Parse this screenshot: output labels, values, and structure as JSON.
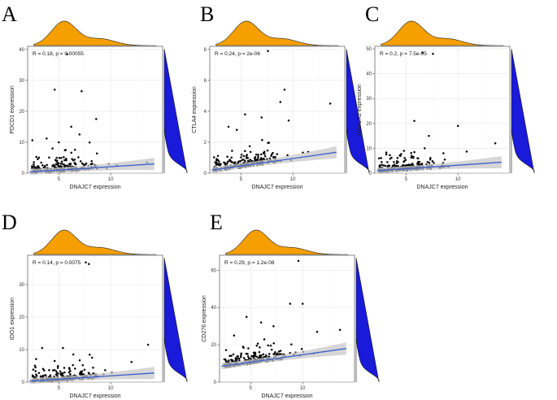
{
  "colors": {
    "density_top": "#f5a000",
    "density_right": "#1a1adb",
    "fit_line": "#3a5fcd",
    "ci_band": "#c8c8c8",
    "point": "#000000",
    "grid": "#e6e6e6"
  },
  "chart_data": [
    {
      "type": "scatter",
      "panel": "A",
      "xlabel": "DNAJC7 expression",
      "ylabel": "PDCD1 expression",
      "stat_text": "R = 0.18, p = 0.00055",
      "xlim": [
        2,
        15
      ],
      "ylim": [
        0,
        41
      ],
      "x_ticks": [
        5,
        10
      ],
      "y_ticks": [
        0,
        10,
        20,
        30,
        40
      ],
      "fit": {
        "x0": 2.2,
        "y0": 0.4,
        "x1": 14.2,
        "y1": 3.0
      },
      "outliers": [
        [
          5.8,
          38.5
        ],
        [
          4.6,
          27
        ],
        [
          7.2,
          26.5
        ],
        [
          8.6,
          17.5
        ],
        [
          6.2,
          15
        ],
        [
          7.0,
          12.5
        ],
        [
          5.0,
          10
        ],
        [
          4.4,
          8
        ],
        [
          13.5,
          3.5
        ]
      ]
    },
    {
      "type": "scatter",
      "panel": "B",
      "xlabel": "DNAJC7 expression",
      "ylabel": "CTLA4 expression",
      "stat_text": "R = 0.24, p = 2e-06",
      "xlim": [
        2,
        15
      ],
      "ylim": [
        0,
        8.2
      ],
      "x_ticks": [
        5,
        10
      ],
      "y_ticks": [
        0,
        2,
        4,
        6,
        8
      ],
      "fit": {
        "x0": 2.2,
        "y0": 0.2,
        "x1": 14.2,
        "y1": 1.35
      },
      "outliers": [
        [
          7.6,
          7.9
        ],
        [
          9.2,
          5.4
        ],
        [
          8.8,
          4.6
        ],
        [
          13.6,
          4.5
        ],
        [
          5.4,
          3.8
        ],
        [
          7.0,
          3.6
        ],
        [
          9.6,
          3.4
        ],
        [
          3.8,
          3.0
        ],
        [
          4.6,
          2.8
        ]
      ]
    },
    {
      "type": "scatter",
      "panel": "C",
      "xlabel": "DNAJC7 expression",
      "ylabel": "HAVCR2 expression",
      "stat_text": "R = 0.2, p = 7.5e-05",
      "xlim": [
        2,
        15
      ],
      "ylim": [
        0,
        51
      ],
      "x_ticks": [
        5,
        10
      ],
      "y_ticks": [
        0,
        10,
        20,
        30,
        40,
        50
      ],
      "fit": {
        "x0": 2.2,
        "y0": 1.0,
        "x1": 14.2,
        "y1": 4.4
      },
      "outliers": [
        [
          6.6,
          48.5
        ],
        [
          7.6,
          48
        ],
        [
          5.8,
          21
        ],
        [
          10.0,
          19
        ],
        [
          7.2,
          15
        ],
        [
          13.6,
          12
        ],
        [
          6.8,
          10
        ],
        [
          4.8,
          9
        ],
        [
          8.6,
          8
        ]
      ]
    },
    {
      "type": "scatter",
      "panel": "D",
      "xlabel": "DNAJC7 expression",
      "ylabel": "IDO1 expression",
      "stat_text": "R = 0.14, p = 0.0075",
      "xlim": [
        2,
        15
      ],
      "ylim": [
        0,
        39
      ],
      "x_ticks": [
        5,
        10
      ],
      "y_ticks": [
        0,
        10,
        20,
        30
      ],
      "fit": {
        "x0": 2.2,
        "y0": 0.3,
        "x1": 14.2,
        "y1": 2.8
      },
      "outliers": [
        [
          7.6,
          36.8
        ],
        [
          7.9,
          36.3
        ],
        [
          3.4,
          10.5
        ],
        [
          5.4,
          10.5
        ],
        [
          13.6,
          11.5
        ],
        [
          6.4,
          8.5
        ],
        [
          8.2,
          7.5
        ],
        [
          12.0,
          6.2
        ],
        [
          4.6,
          6.5
        ]
      ]
    },
    {
      "type": "scatter",
      "panel": "E",
      "xlabel": "DNAJC7 expression",
      "ylabel": "CD276 expression",
      "stat_text": "R = 0.29, p = 1.2e-08",
      "xlim": [
        2,
        15
      ],
      "ylim": [
        0,
        68
      ],
      "x_ticks": [
        5,
        10
      ],
      "y_ticks": [
        0,
        20,
        40,
        60
      ],
      "fit": {
        "x0": 2.2,
        "y0": 8.5,
        "x1": 14.2,
        "y1": 18.0
      },
      "outliers": [
        [
          9.6,
          65
        ],
        [
          8.8,
          42
        ],
        [
          10.0,
          42
        ],
        [
          4.6,
          35
        ],
        [
          13.6,
          28
        ],
        [
          6.0,
          32
        ],
        [
          7.2,
          30
        ],
        [
          11.4,
          27
        ],
        [
          3.4,
          25
        ]
      ]
    }
  ]
}
